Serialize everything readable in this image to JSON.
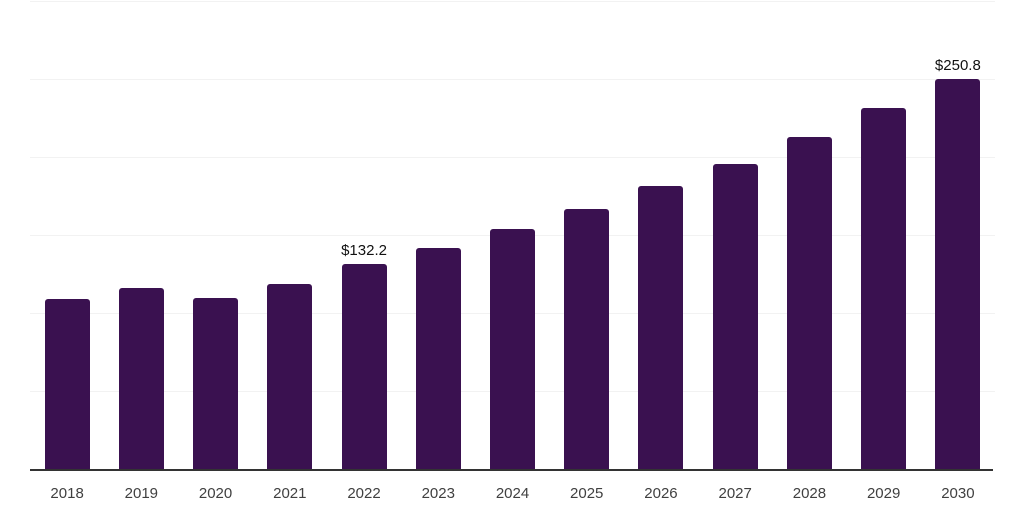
{
  "chart_data": {
    "type": "bar",
    "title": "",
    "xlabel": "",
    "ylabel": "",
    "categories": [
      "2018",
      "2019",
      "2020",
      "2021",
      "2022",
      "2023",
      "2024",
      "2025",
      "2026",
      "2027",
      "2028",
      "2029",
      "2030"
    ],
    "values": [
      109.6,
      116.5,
      110.5,
      119.1,
      132.2,
      142.6,
      154.6,
      167.5,
      182.1,
      196.4,
      213.6,
      231.8,
      250.8
    ],
    "data_labels": [
      "",
      "",
      "",
      "",
      "$132.2",
      "",
      "",
      "",
      "",
      "",
      "",
      "",
      "$250.8"
    ],
    "ylim": [
      0,
      300
    ],
    "gridline_values": [
      0,
      50,
      100,
      150,
      200,
      250,
      300
    ],
    "grid": true,
    "legend": "none",
    "y_axis_tick_labels_visible": false,
    "colors": {
      "bar": "#3a1150",
      "gridline": "#f2f2f2",
      "axis_line": "#333333",
      "tick_label": "#404040",
      "data_label": "#111111",
      "background": "#ffffff"
    }
  }
}
